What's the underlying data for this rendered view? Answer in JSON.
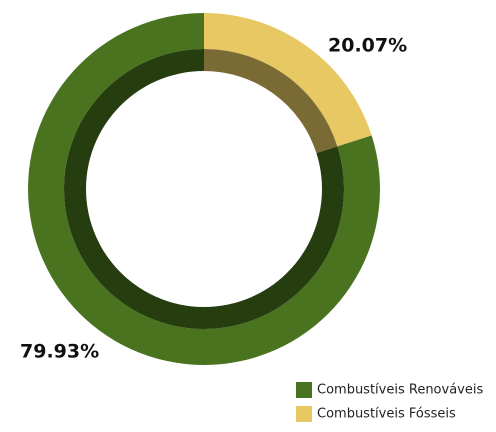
{
  "chart_data": {
    "type": "donut",
    "categories": [
      "Combustíveis Renováveis",
      "Combustíveis Fósseis"
    ],
    "values": [
      79.93,
      20.07
    ],
    "value_labels": [
      "79.93%",
      "20.07%"
    ],
    "colors": [
      "#4a7320",
      "#e8c862"
    ],
    "inner_colors": [
      "#263d10",
      "#7a6a34"
    ],
    "legend": "bottom-right"
  }
}
